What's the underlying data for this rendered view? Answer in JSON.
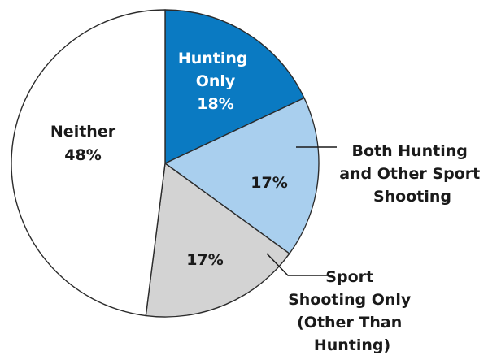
{
  "chart_data": {
    "type": "pie",
    "start_angle_deg": 0,
    "direction": "clockwise",
    "slices": [
      {
        "label_lines": [
          "Hunting",
          "Only"
        ],
        "value": 18,
        "value_label": "18%",
        "color": "#0a7ac2",
        "text_color": "#ffffff",
        "label_inside": true
      },
      {
        "label_lines": [
          "Both Hunting",
          "and Other Sport",
          "Shooting"
        ],
        "value": 17,
        "value_label": "17%",
        "color": "#a9cfee",
        "text_color": "#1a1a1a",
        "label_inside": false
      },
      {
        "label_lines": [
          "Sport",
          "Shooting Only",
          "(Other Than",
          "Hunting)"
        ],
        "value": 17,
        "value_label": "17%",
        "color": "#d3d3d3",
        "text_color": "#1a1a1a",
        "label_inside": false
      },
      {
        "label_lines": [
          "Neither"
        ],
        "value": 48,
        "value_label": "48%",
        "color": "#ffffff",
        "text_color": "#1a1a1a",
        "label_inside": true
      }
    ]
  }
}
